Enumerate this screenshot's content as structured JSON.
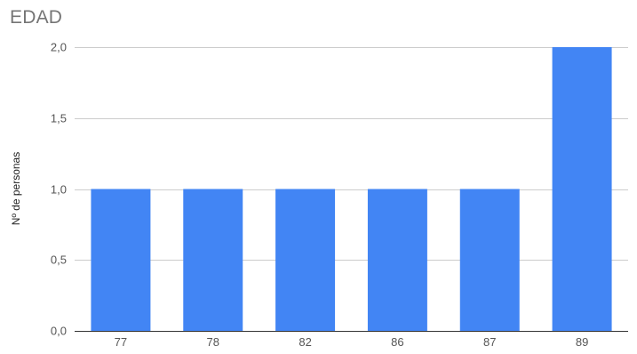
{
  "chart_data": {
    "type": "bar",
    "title": "EDAD",
    "xlabel": "",
    "ylabel": "Nº de personas",
    "categories": [
      "77",
      "78",
      "82",
      "86",
      "87",
      "89"
    ],
    "values": [
      1,
      1,
      1,
      1,
      1,
      2
    ],
    "ylim": [
      0,
      2
    ],
    "yticks": [
      "0,0",
      "0,5",
      "1,0",
      "1,5",
      "2,0"
    ],
    "ytick_values": [
      0,
      0.5,
      1,
      1.5,
      2
    ],
    "grid": true,
    "legend": "none",
    "colors": {
      "bar": "#4285f4",
      "grid": "#cccccc",
      "axis": "#333333",
      "tick_text": "#555555",
      "title": "#757575"
    }
  }
}
